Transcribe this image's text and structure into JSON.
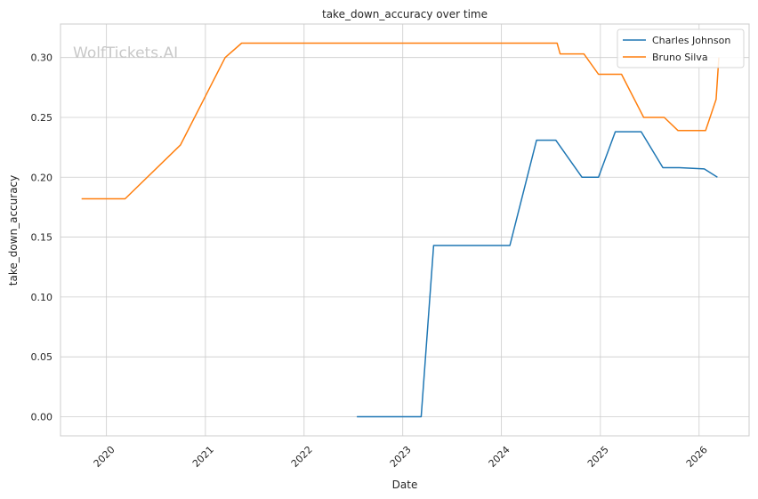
{
  "chart_data": {
    "type": "line",
    "title": "take_down_accuracy over time",
    "xlabel": "Date",
    "ylabel": "take_down_accuracy",
    "watermark": "WolfTickets.AI",
    "x_ticks": [
      "2020",
      "2021",
      "2022",
      "2023",
      "2024",
      "2025",
      "2026"
    ],
    "y_ticks": [
      "0.00",
      "0.05",
      "0.10",
      "0.15",
      "0.20",
      "0.25",
      "0.30"
    ],
    "xlim": [
      "2019-07-15",
      "2026-07-05"
    ],
    "ylim": [
      -0.016,
      0.328
    ],
    "grid": true,
    "legend_position": "top-right",
    "series": [
      {
        "name": "Charles Johnson",
        "color": "#1f77b4",
        "points": [
          [
            "2022-07-15",
            0.0
          ],
          [
            "2023-03-10",
            0.0
          ],
          [
            "2023-04-25",
            0.143
          ],
          [
            "2024-02-01",
            0.143
          ],
          [
            "2024-05-10",
            0.231
          ],
          [
            "2024-07-20",
            0.231
          ],
          [
            "2024-10-25",
            0.2
          ],
          [
            "2024-12-25",
            0.2
          ],
          [
            "2025-02-25",
            0.238
          ],
          [
            "2025-06-01",
            0.238
          ],
          [
            "2025-08-20",
            0.208
          ],
          [
            "2025-10-20",
            0.208
          ],
          [
            "2026-01-20",
            0.207
          ],
          [
            "2026-03-10",
            0.2
          ]
        ]
      },
      {
        "name": "Bruno Silva",
        "color": "#ff7f0e",
        "points": [
          [
            "2019-10-01",
            0.182
          ],
          [
            "2020-03-10",
            0.182
          ],
          [
            "2020-10-01",
            0.227
          ],
          [
            "2021-03-15",
            0.3
          ],
          [
            "2021-05-15",
            0.312
          ],
          [
            "2024-07-25",
            0.312
          ],
          [
            "2024-08-05",
            0.303
          ],
          [
            "2024-11-01",
            0.303
          ],
          [
            "2024-12-25",
            0.286
          ],
          [
            "2025-03-20",
            0.286
          ],
          [
            "2025-06-10",
            0.25
          ],
          [
            "2025-08-25",
            0.25
          ],
          [
            "2025-10-15",
            0.239
          ],
          [
            "2026-01-25",
            0.239
          ],
          [
            "2026-03-05",
            0.265
          ],
          [
            "2026-03-15",
            0.3
          ]
        ]
      }
    ]
  }
}
